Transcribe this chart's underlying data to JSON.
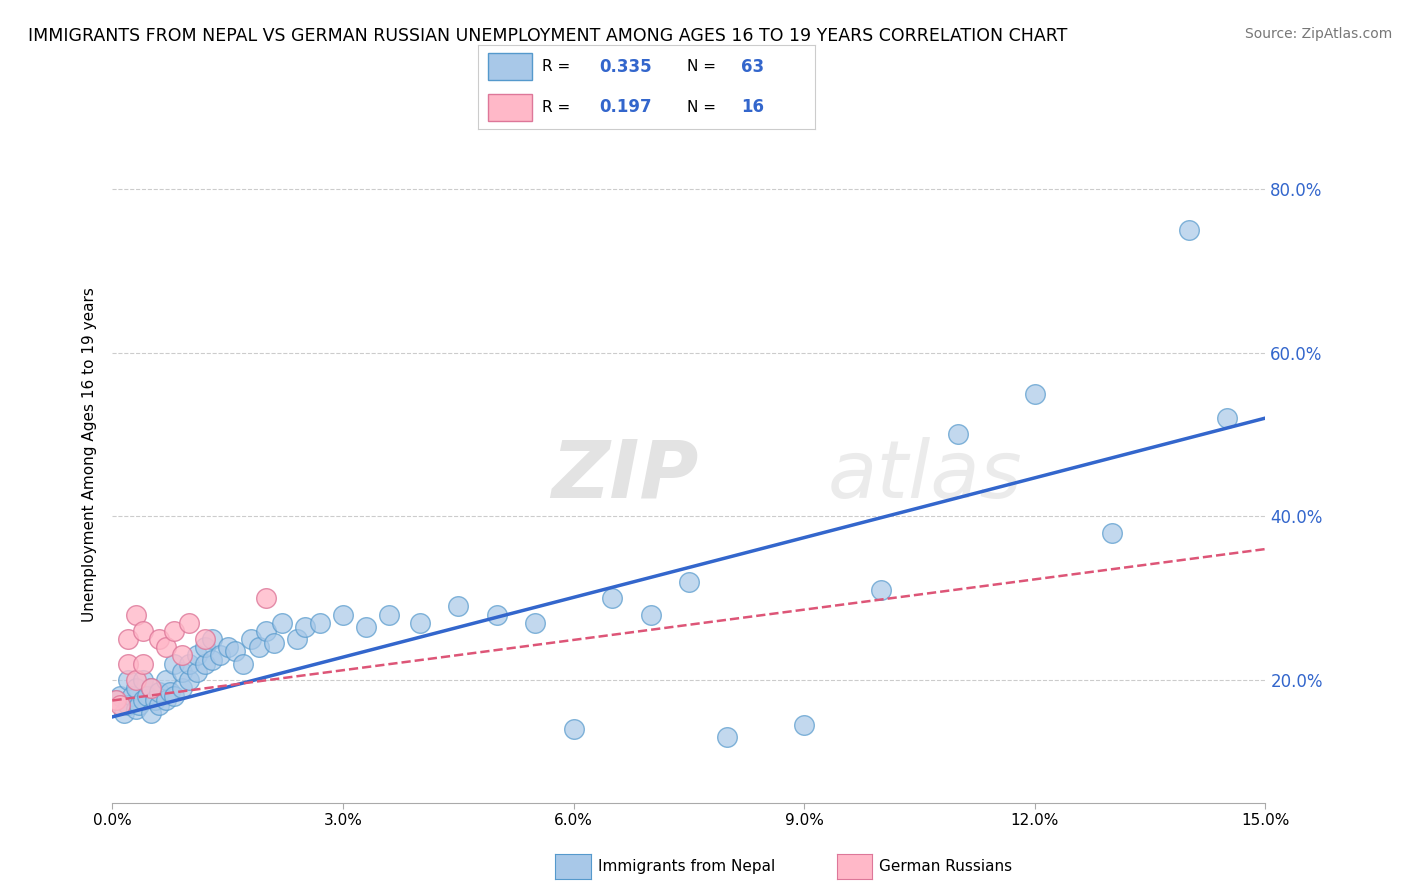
{
  "title": "IMMIGRANTS FROM NEPAL VS GERMAN RUSSIAN UNEMPLOYMENT AMONG AGES 16 TO 19 YEARS CORRELATION CHART",
  "source": "Source: ZipAtlas.com",
  "ylabel": "Unemployment Among Ages 16 to 19 years",
  "xlim": [
    0.0,
    0.15
  ],
  "ylim": [
    0.05,
    0.9
  ],
  "xticks": [
    0.0,
    0.03,
    0.06,
    0.09,
    0.12,
    0.15
  ],
  "xticklabels": [
    "0.0%",
    "3.0%",
    "6.0%",
    "9.0%",
    "12.0%",
    "15.0%"
  ],
  "yticks_right": [
    0.2,
    0.4,
    0.6,
    0.8
  ],
  "ytick_labels_right": [
    "20.0%",
    "40.0%",
    "60.0%",
    "80.0%"
  ],
  "nepal_color": "#a8c8e8",
  "nepal_color_edge": "#5599cc",
  "german_color": "#ffb8c8",
  "german_color_edge": "#dd7799",
  "trendline_nepal_color": "#3366cc",
  "trendline_german_color": "#dd5577",
  "watermark_zip": "ZIP",
  "watermark_atlas": "atlas",
  "bg_color": "#ffffff",
  "grid_color": "#cccccc",
  "nepal_x": [
    0.0005,
    0.001,
    0.0015,
    0.002,
    0.002,
    0.0025,
    0.003,
    0.003,
    0.0035,
    0.004,
    0.004,
    0.0045,
    0.005,
    0.005,
    0.0055,
    0.006,
    0.006,
    0.007,
    0.007,
    0.0075,
    0.008,
    0.008,
    0.009,
    0.009,
    0.01,
    0.01,
    0.011,
    0.011,
    0.012,
    0.012,
    0.013,
    0.013,
    0.014,
    0.015,
    0.016,
    0.017,
    0.018,
    0.019,
    0.02,
    0.021,
    0.022,
    0.024,
    0.025,
    0.027,
    0.03,
    0.033,
    0.036,
    0.04,
    0.045,
    0.05,
    0.055,
    0.06,
    0.065,
    0.07,
    0.075,
    0.08,
    0.09,
    0.1,
    0.11,
    0.12,
    0.13,
    0.14,
    0.145
  ],
  "nepal_y": [
    0.175,
    0.18,
    0.16,
    0.17,
    0.2,
    0.18,
    0.165,
    0.19,
    0.17,
    0.175,
    0.2,
    0.18,
    0.16,
    0.19,
    0.175,
    0.17,
    0.185,
    0.175,
    0.2,
    0.185,
    0.18,
    0.22,
    0.19,
    0.21,
    0.2,
    0.22,
    0.21,
    0.23,
    0.22,
    0.24,
    0.225,
    0.25,
    0.23,
    0.24,
    0.235,
    0.22,
    0.25,
    0.24,
    0.26,
    0.245,
    0.27,
    0.25,
    0.265,
    0.27,
    0.28,
    0.265,
    0.28,
    0.27,
    0.29,
    0.28,
    0.27,
    0.14,
    0.3,
    0.28,
    0.32,
    0.13,
    0.145,
    0.31,
    0.5,
    0.55,
    0.38,
    0.75,
    0.52
  ],
  "german_x": [
    0.0005,
    0.001,
    0.002,
    0.002,
    0.003,
    0.003,
    0.004,
    0.004,
    0.005,
    0.006,
    0.007,
    0.008,
    0.009,
    0.01,
    0.012,
    0.02
  ],
  "german_y": [
    0.175,
    0.17,
    0.22,
    0.25,
    0.2,
    0.28,
    0.22,
    0.26,
    0.19,
    0.25,
    0.24,
    0.26,
    0.23,
    0.27,
    0.25,
    0.3
  ],
  "nepal_trendline_x0": 0.0,
  "nepal_trendline_x1": 0.15,
  "nepal_trendline_y0": 0.155,
  "nepal_trendline_y1": 0.52,
  "german_trendline_x0": 0.0,
  "german_trendline_x1": 0.15,
  "german_trendline_y0": 0.175,
  "german_trendline_y1": 0.36
}
